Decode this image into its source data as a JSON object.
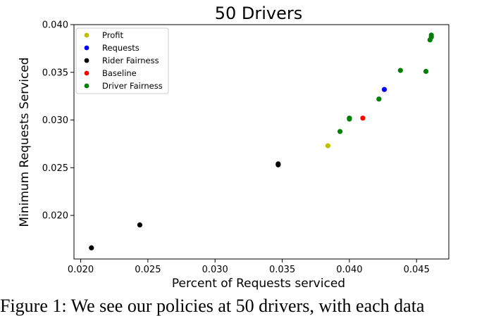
{
  "chart_data": {
    "type": "scatter",
    "title": "50 Drivers",
    "xlabel": "Percent of Requests serviced",
    "ylabel": "Minimum Requests Serviced",
    "xlim": [
      0.0195,
      0.0474
    ],
    "ylim": [
      0.01543,
      0.04
    ],
    "xticks": [
      "0.020",
      "0.025",
      "0.030",
      "0.035",
      "0.040",
      "0.045"
    ],
    "xtick_values": [
      0.02,
      0.025,
      0.03,
      0.035,
      0.04,
      0.045
    ],
    "yticks": [
      "0.020",
      "0.025",
      "0.030",
      "0.035",
      "0.040"
    ],
    "ytick_values": [
      0.02,
      0.025,
      0.03,
      0.035,
      0.04
    ],
    "grid": false,
    "legend_position": "upper-left",
    "series": [
      {
        "name": "Profit",
        "color": "#bfbf00",
        "points": [
          [
            0.0384,
            0.0273
          ]
        ]
      },
      {
        "name": "Requests",
        "color": "#0000ff",
        "points": [
          [
            0.0426,
            0.0332
          ]
        ]
      },
      {
        "name": "Rider Fairness",
        "color": "#000000",
        "points": [
          [
            0.0208,
            0.0166
          ],
          [
            0.0244,
            0.019
          ],
          [
            0.0347,
            0.0253
          ],
          [
            0.0347,
            0.0254
          ]
        ]
      },
      {
        "name": "Baseline",
        "color": "#ff0000",
        "points": [
          [
            0.041,
            0.0302
          ]
        ]
      },
      {
        "name": "Driver Fairness",
        "color": "#008000",
        "points": [
          [
            0.0393,
            0.0288
          ],
          [
            0.04,
            0.0301
          ],
          [
            0.04,
            0.0302
          ],
          [
            0.0422,
            0.0322
          ],
          [
            0.0438,
            0.0352
          ],
          [
            0.0457,
            0.0351
          ],
          [
            0.046,
            0.0384
          ],
          [
            0.0461,
            0.0389
          ],
          [
            0.0461,
            0.0387
          ]
        ]
      }
    ]
  },
  "caption": {
    "text": "Figure 1: We see our policies at 50 drivers, with each data"
  }
}
